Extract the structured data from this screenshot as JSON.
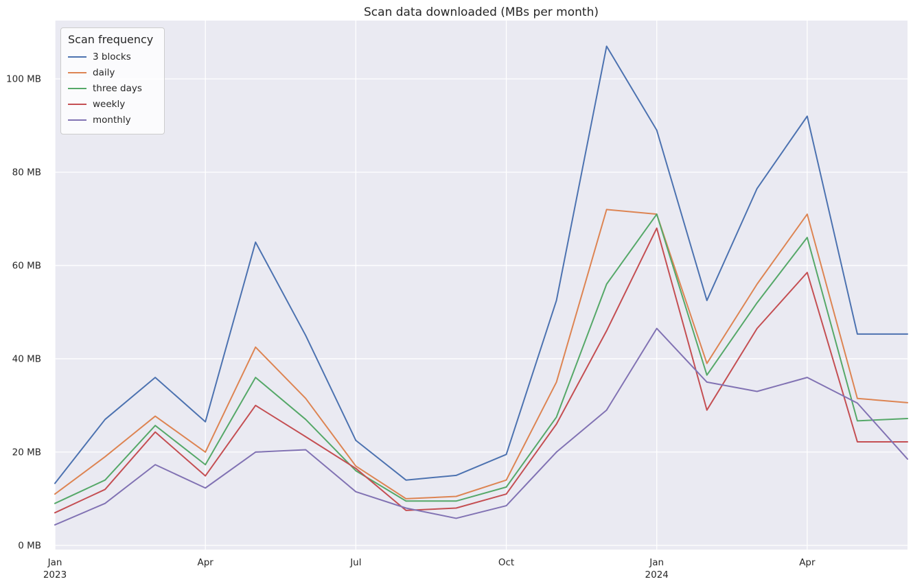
{
  "chart_data": {
    "type": "line",
    "title": "Scan data downloaded (MBs per month)",
    "legend_title": "Scan frequency",
    "legend_position": "upper left",
    "grid": true,
    "background_color": "#EAEAF2",
    "gridline_color": "#FFFFFF",
    "text_color": "#262626",
    "months": [
      "Jan 2023",
      "Feb 2023",
      "Mar 2023",
      "Apr 2023",
      "May 2023",
      "Jun 2023",
      "Jul 2023",
      "Aug 2023",
      "Sep 2023",
      "Oct 2023",
      "Nov 2023",
      "Dec 2023",
      "Jan 2024",
      "Feb 2024",
      "Mar 2024",
      "Apr 2024",
      "May 2024",
      "Jun 2024"
    ],
    "x_ticks": [
      {
        "month_index": 0,
        "lines": [
          "Jan",
          "2023"
        ]
      },
      {
        "month_index": 3,
        "lines": [
          "Apr"
        ]
      },
      {
        "month_index": 6,
        "lines": [
          "Jul"
        ]
      },
      {
        "month_index": 9,
        "lines": [
          "Oct"
        ]
      },
      {
        "month_index": 12,
        "lines": [
          "Jan",
          "2024"
        ]
      },
      {
        "month_index": 15,
        "lines": [
          "Apr"
        ]
      }
    ],
    "y_ticks": [
      {
        "value": 0,
        "label": "0 MB"
      },
      {
        "value": 20,
        "label": "20 MB"
      },
      {
        "value": 40,
        "label": "40 MB"
      },
      {
        "value": 60,
        "label": "60 MB"
      },
      {
        "value": 80,
        "label": "80 MB"
      },
      {
        "value": 100,
        "label": "100 MB"
      }
    ],
    "ylim": [
      -0.9,
      112.5
    ],
    "ylabel": "",
    "xlabel": "",
    "series": [
      {
        "name": "3 blocks",
        "color": "#4C72B0",
        "values": [
          13.3,
          27,
          36,
          26.5,
          65,
          45,
          22.5,
          14,
          15,
          19.5,
          52.5,
          107,
          89,
          52.5,
          76.5,
          92,
          45.3,
          45.3
        ]
      },
      {
        "name": "daily",
        "color": "#DD8452",
        "values": [
          11,
          19,
          27.7,
          20,
          42.5,
          31.5,
          17,
          10,
          10.5,
          14,
          35,
          72,
          71,
          39,
          56,
          71,
          31.5,
          30.6
        ]
      },
      {
        "name": "three days",
        "color": "#55A868",
        "values": [
          9,
          14,
          25.7,
          17.3,
          36,
          27,
          16,
          9.5,
          9.5,
          12.5,
          27.5,
          56,
          71,
          36.5,
          52,
          66,
          26.7,
          27.2
        ]
      },
      {
        "name": "weekly",
        "color": "#C44E52",
        "values": [
          7,
          12,
          24.3,
          14.9,
          30,
          23.3,
          16.5,
          7.5,
          8,
          11,
          26,
          46,
          68,
          29,
          46.5,
          58.5,
          22.2,
          22.2
        ]
      },
      {
        "name": "monthly",
        "color": "#8172B3",
        "values": [
          4.4,
          9,
          17.3,
          12.3,
          20,
          20.5,
          11.5,
          8,
          5.8,
          8.5,
          20,
          29,
          46.5,
          35,
          33,
          36,
          30.5,
          18.5
        ]
      }
    ]
  }
}
